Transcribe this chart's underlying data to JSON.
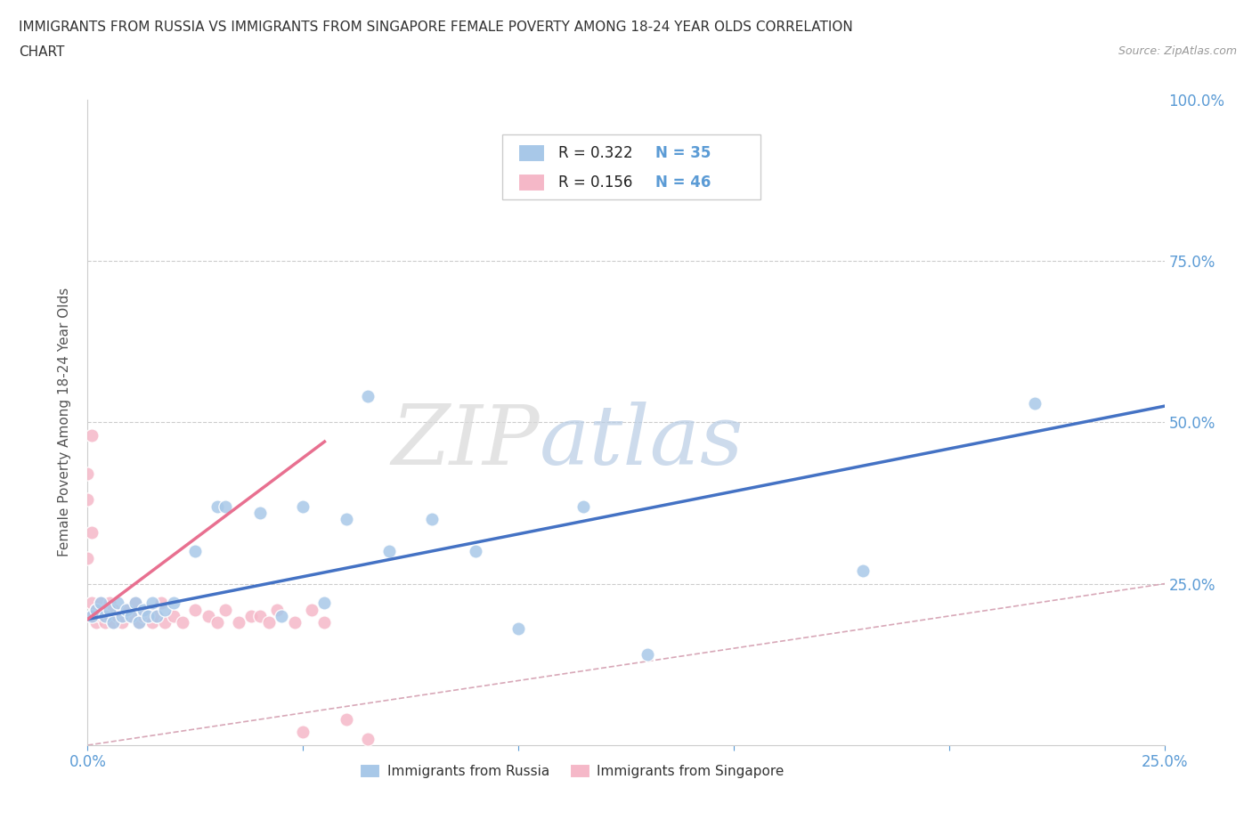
{
  "title_line1": "IMMIGRANTS FROM RUSSIA VS IMMIGRANTS FROM SINGAPORE FEMALE POVERTY AMONG 18-24 YEAR OLDS CORRELATION",
  "title_line2": "CHART",
  "source_text": "Source: ZipAtlas.com",
  "ylabel": "Female Poverty Among 18-24 Year Olds",
  "xmin": 0.0,
  "xmax": 0.25,
  "ymin": 0.0,
  "ymax": 1.0,
  "xtick_positions": [
    0.0,
    0.05,
    0.1,
    0.15,
    0.2,
    0.25
  ],
  "xtick_labels": [
    "0.0%",
    "",
    "",
    "",
    "",
    "25.0%"
  ],
  "ytick_positions": [
    0.0,
    0.25,
    0.5,
    0.75,
    1.0
  ],
  "ytick_labels_right": [
    "",
    "25.0%",
    "50.0%",
    "75.0%",
    "100.0%"
  ],
  "russia_R": 0.322,
  "russia_N": 35,
  "singapore_R": 0.156,
  "singapore_N": 46,
  "russia_color": "#a8c8e8",
  "singapore_color": "#f5b8c8",
  "russia_line_color": "#4472c4",
  "singapore_line_color": "#e87090",
  "diagonal_color": "#d8a8b8",
  "grid_color": "#e0e0e0",
  "background_color": "#ffffff",
  "watermark_text": "ZIPatlas",
  "tick_color": "#5b9bd5",
  "russia_line_intercept": 0.195,
  "russia_line_slope": 1.32,
  "singapore_line_intercept": 0.195,
  "singapore_line_slope": 5.0,
  "russia_scatter_x": [
    0.001,
    0.002,
    0.003,
    0.004,
    0.005,
    0.006,
    0.007,
    0.008,
    0.009,
    0.01,
    0.011,
    0.012,
    0.013,
    0.014,
    0.015,
    0.016,
    0.018,
    0.02,
    0.025,
    0.03,
    0.032,
    0.04,
    0.045,
    0.05,
    0.055,
    0.06,
    0.065,
    0.07,
    0.08,
    0.09,
    0.1,
    0.115,
    0.13,
    0.18,
    0.22
  ],
  "russia_scatter_y": [
    0.2,
    0.21,
    0.22,
    0.2,
    0.21,
    0.19,
    0.22,
    0.2,
    0.21,
    0.2,
    0.22,
    0.19,
    0.21,
    0.2,
    0.22,
    0.2,
    0.21,
    0.22,
    0.3,
    0.37,
    0.37,
    0.36,
    0.2,
    0.37,
    0.22,
    0.35,
    0.54,
    0.3,
    0.35,
    0.3,
    0.18,
    0.37,
    0.14,
    0.27,
    0.53
  ],
  "singapore_scatter_x": [
    0.0,
    0.0,
    0.001,
    0.001,
    0.001,
    0.002,
    0.002,
    0.003,
    0.003,
    0.004,
    0.004,
    0.005,
    0.005,
    0.006,
    0.006,
    0.007,
    0.008,
    0.009,
    0.01,
    0.011,
    0.012,
    0.013,
    0.014,
    0.015,
    0.016,
    0.017,
    0.018,
    0.02,
    0.022,
    0.025,
    0.028,
    0.03,
    0.032,
    0.035,
    0.038,
    0.04,
    0.042,
    0.044,
    0.048,
    0.05,
    0.052,
    0.055,
    0.06,
    0.065,
    0.0,
    0.001
  ],
  "singapore_scatter_y": [
    0.38,
    0.42,
    0.2,
    0.22,
    0.48,
    0.19,
    0.21,
    0.2,
    0.22,
    0.19,
    0.21,
    0.2,
    0.22,
    0.19,
    0.21,
    0.2,
    0.19,
    0.21,
    0.2,
    0.22,
    0.19,
    0.2,
    0.21,
    0.19,
    0.2,
    0.22,
    0.19,
    0.2,
    0.19,
    0.21,
    0.2,
    0.19,
    0.21,
    0.19,
    0.2,
    0.2,
    0.19,
    0.21,
    0.19,
    0.02,
    0.21,
    0.19,
    0.04,
    0.01,
    0.29,
    0.33
  ]
}
